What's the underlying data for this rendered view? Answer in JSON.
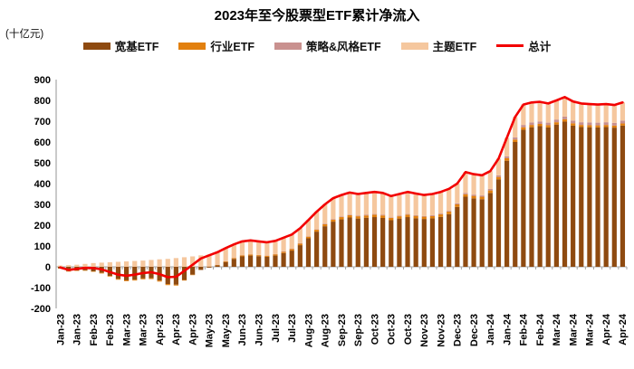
{
  "chart_data": {
    "type": "bar",
    "stacked": true,
    "title": "2023年至今股票型ETF累计净流入",
    "unit": "(十亿元)",
    "grid": false,
    "legend_position": "top",
    "ylim": [
      -200,
      900
    ],
    "y_ticks": [
      900,
      800,
      700,
      600,
      500,
      400,
      300,
      200,
      100,
      0,
      -100,
      -200
    ],
    "x_labels": [
      "Jan-23",
      "",
      "Jan-23",
      "",
      "Feb-23",
      "",
      "Feb-23",
      "",
      "Mar-23",
      "",
      "Mar-23",
      "",
      "Apr-23",
      "",
      "Apr-23",
      "",
      "Apr-23",
      "",
      "May-23",
      "",
      "May-23",
      "",
      "Jun-23",
      "",
      "Jun-23",
      "",
      "Jul-23",
      "",
      "Jul-23",
      "",
      "Aug-23",
      "",
      "Aug-23",
      "",
      "Sep-23",
      "",
      "Sep-23",
      "",
      "Oct-23",
      "",
      "Oct-23",
      "",
      "Oct-23",
      "",
      "Nov-23",
      "",
      "Nov-23",
      "",
      "Dec-23",
      "",
      "Dec-23",
      "",
      "Jan-24",
      "",
      "Jan-24",
      "",
      "Feb-24",
      "",
      "Feb-24",
      "",
      "Mar-24",
      "",
      "Mar-24",
      "",
      "Mar-24",
      "",
      "Apr-24",
      "",
      "Apr-24"
    ],
    "series": [
      {
        "key": "broad-based-etf",
        "name": "宽基ETF",
        "color": "#8E4A10",
        "values": [
          -8,
          -21,
          -18,
          -17,
          -22,
          -29,
          -44,
          -58,
          -65,
          -62,
          -56,
          -55,
          -66,
          -83,
          -86,
          -63,
          -38,
          -15,
          -4,
          7,
          23,
          38,
          50,
          54,
          51,
          48,
          54,
          66,
          78,
          104,
          137,
          169,
          195,
          217,
          228,
          237,
          232,
          236,
          239,
          235,
          224,
          232,
          239,
          233,
          230,
          233,
          240,
          253,
          288,
          337,
          329,
          325,
          355,
          420,
          510,
          600,
          659,
          671,
          676,
          670,
          684,
          698,
          679,
          672,
          671,
          670,
          672,
          669,
          679
        ]
      },
      {
        "key": "industry-etf",
        "name": "行业ETF",
        "color": "#E2800E",
        "values": [
          -1,
          -2,
          -2,
          -2,
          -2,
          -3,
          -3,
          -4,
          -4,
          -4,
          -4,
          -4,
          -5,
          -5,
          -4,
          -3,
          -2,
          0,
          1,
          2,
          3,
          4,
          5,
          5,
          5,
          5,
          6,
          6,
          7,
          7,
          8,
          9,
          10,
          10,
          11,
          11,
          11,
          11,
          12,
          12,
          11,
          11,
          12,
          12,
          11,
          11,
          12,
          12,
          12,
          12,
          12,
          12,
          12,
          12,
          12,
          12,
          12,
          11,
          11,
          11,
          11,
          11,
          11,
          10,
          10,
          10,
          10,
          10,
          10
        ]
      },
      {
        "key": "strategy-style-etf",
        "name": "策略&风格ETF",
        "color": "#C9918F",
        "values": [
          0,
          0,
          0,
          0,
          0,
          0,
          0,
          0,
          0,
          0,
          0,
          0,
          0,
          0,
          0,
          0,
          0,
          0,
          0,
          1,
          1,
          1,
          1,
          1,
          1,
          1,
          1,
          2,
          2,
          2,
          2,
          2,
          3,
          3,
          3,
          3,
          3,
          3,
          3,
          3,
          3,
          3,
          3,
          3,
          3,
          4,
          4,
          4,
          5,
          6,
          6,
          6,
          7,
          8,
          9,
          10,
          11,
          12,
          12,
          12,
          13,
          13,
          13,
          13,
          13,
          13,
          13,
          13,
          14
        ]
      },
      {
        "key": "theme-etf",
        "name": "主题ETF",
        "color": "#F5C79E",
        "values": [
          6,
          8,
          10,
          14,
          18,
          20,
          22,
          24,
          26,
          28,
          30,
          33,
          36,
          38,
          42,
          46,
          50,
          55,
          58,
          60,
          63,
          65,
          66,
          67,
          65,
          64,
          64,
          66,
          68,
          72,
          78,
          85,
          92,
          100,
          103,
          106,
          104,
          105,
          106,
          105,
          102,
          104,
          106,
          104,
          101,
          102,
          104,
          106,
          95,
          100,
          98,
          97,
          86,
          80,
          89,
          98,
          98,
          96,
          94,
          92,
          92,
          94,
          92,
          90,
          88,
          87,
          87,
          86,
          87
        ]
      }
    ],
    "total_line": {
      "key": "total",
      "name": "总计",
      "color": "#F20000",
      "values": [
        -3,
        -15,
        -10,
        -5,
        -6,
        -12,
        -25,
        -38,
        -43,
        -38,
        -30,
        -26,
        -35,
        -50,
        -48,
        -20,
        10,
        40,
        55,
        70,
        90,
        108,
        122,
        127,
        122,
        118,
        125,
        140,
        155,
        185,
        225,
        265,
        300,
        330,
        345,
        357,
        350,
        355,
        360,
        355,
        340,
        350,
        360,
        352,
        345,
        350,
        360,
        375,
        400,
        455,
        445,
        440,
        460,
        520,
        620,
        720,
        780,
        790,
        793,
        785,
        800,
        816,
        795,
        785,
        782,
        780,
        782,
        778,
        790
      ]
    },
    "axis_color": "#A6A6A6"
  }
}
